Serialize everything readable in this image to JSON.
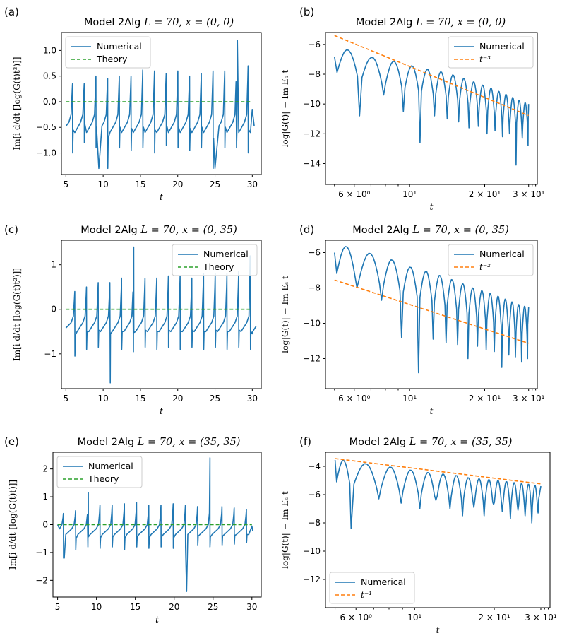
{
  "colors": {
    "numerical": "#1f77b4",
    "theory": "#2ca02c",
    "powerlaw": "#ff7f0e"
  },
  "chart_data": [
    {
      "label": "(a)",
      "type": "line",
      "title_text": "Model 2Alg",
      "title_math": "L = 70, x = (0, 0)",
      "xlabel": "t",
      "ylabel": "Im[i d/dt [log(G(t)t³)]]",
      "xscale": "linear",
      "xlim": [
        4.4,
        31.2
      ],
      "ylim": [
        -1.42,
        1.35
      ],
      "xticks": [
        5,
        10,
        15,
        20,
        25,
        30
      ],
      "xtick_labels": [
        "5",
        "10",
        "15",
        "20",
        "25",
        "30"
      ],
      "yticks": [
        -1.0,
        -0.5,
        0.0,
        0.5,
        1.0
      ],
      "ytick_labels": [
        "−1.0",
        "−0.5",
        "0.0",
        "0.5",
        "1.0"
      ],
      "legend": {
        "loc": "upper-left",
        "entries": [
          "Numerical",
          "Theory"
        ]
      },
      "series": [
        {
          "name": "Numerical",
          "role": "oscillating",
          "period": 1.57,
          "phase": 5.9,
          "baseline": -0.35,
          "start": [
            5.0,
            -0.48
          ],
          "end": [
            30.0,
            -0.15
          ],
          "peaks": [
            0.35,
            0.35,
            0.5,
            0.45,
            0.5,
            0.5,
            0.62,
            0.6,
            0.55,
            0.6,
            0.5,
            0.55,
            0.6,
            0.6,
            0.65,
            0.7,
            0.45
          ],
          "troughs": [
            -1.0,
            -0.8,
            -0.9,
            -1.3,
            -0.9,
            -0.95,
            -0.9,
            -1.0,
            -0.85,
            -0.9,
            -0.95,
            -0.9,
            -1.3,
            -0.9,
            -0.9,
            -1.0,
            -0.9
          ],
          "spikes": [
            [
              9.42,
              -1.3
            ],
            [
              25.0,
              -1.3
            ],
            [
              28.0,
              1.2
            ]
          ]
        },
        {
          "name": "Theory",
          "role": "flat",
          "value": 0.0
        }
      ]
    },
    {
      "label": "(b)",
      "type": "line",
      "title_text": "Model 2Alg",
      "title_math": "L = 70, x = (0, 0)",
      "xlabel": "t",
      "ylabel": "log|G(t)| − Im Eₛ t",
      "xscale": "log",
      "xlim": [
        4.6,
        32.5
      ],
      "ylim": [
        -15.4,
        -5.2
      ],
      "xticks": [
        6,
        10,
        20,
        30
      ],
      "xtick_labels": [
        "6 × 10⁰",
        "10¹",
        "2 × 10¹",
        "3 × 10¹"
      ],
      "yticks": [
        -14,
        -12,
        -10,
        -8,
        -6
      ],
      "ytick_labels": [
        "−14",
        "−12",
        "−10",
        "−8",
        "−6"
      ],
      "legend": {
        "loc": "upper-right",
        "entries": [
          "Numerical",
          "t⁻³"
        ]
      },
      "series": [
        {
          "name": "Numerical",
          "role": "oscillating",
          "period": 1.57,
          "phase": 6.3,
          "start": [
            5.0,
            -6.85
          ],
          "end": [
            30.0,
            -10.6
          ],
          "crests": [
            [
              5.5,
              -6.3
            ],
            [
              7.0,
              -6.85
            ],
            [
              8.5,
              -7.1
            ],
            [
              10.0,
              -7.4
            ],
            [
              12.0,
              -7.7
            ],
            [
              14.0,
              -7.9
            ],
            [
              16.0,
              -8.2
            ],
            [
              18.0,
              -8.5
            ],
            [
              21.0,
              -8.9
            ],
            [
              24.0,
              -9.3
            ],
            [
              27.0,
              -9.7
            ],
            [
              30.0,
              -10.0
            ]
          ],
          "dip_depths": [
            -10.8,
            -9.4,
            -10.5,
            -12.6,
            -10.8,
            -11.0,
            -11.2,
            -11.6,
            -11.5,
            -12.0,
            -11.8,
            -12.2,
            -12.0,
            -14.1,
            -12.3,
            -12.8,
            -12.5,
            -14.9,
            -13.1,
            -12.8,
            -14.0,
            -13.2,
            -13.9,
            -13.0
          ]
        },
        {
          "name": "t⁻³",
          "role": "powerlaw",
          "exponent": -3,
          "anchor": [
            5.0,
            -5.4
          ]
        }
      ]
    },
    {
      "label": "(c)",
      "type": "line",
      "title_text": "Model 2Alg",
      "title_math": "L = 70, x = (0, 35)",
      "xlabel": "t",
      "ylabel": "Im[i d/dt [log(G(t)t²)]]",
      "xscale": "linear",
      "xlim": [
        4.4,
        31.2
      ],
      "ylim": [
        -1.78,
        1.55
      ],
      "xticks": [
        5,
        10,
        15,
        20,
        25,
        30
      ],
      "xtick_labels": [
        "5",
        "10",
        "15",
        "20",
        "25",
        "30"
      ],
      "yticks": [
        -1,
        0,
        1
      ],
      "ytick_labels": [
        "−1",
        "0",
        "1"
      ],
      "legend": {
        "loc": "upper-right",
        "entries": [
          "Numerical",
          "Theory"
        ]
      },
      "series": [
        {
          "name": "Numerical",
          "role": "oscillating",
          "period": 1.57,
          "phase": 6.2,
          "baseline": -0.25,
          "start": [
            5.0,
            -0.42
          ],
          "end": [
            30.0,
            -0.55
          ],
          "peaks": [
            0.4,
            0.5,
            0.6,
            0.6,
            0.7,
            0.65,
            0.7,
            0.7,
            0.75,
            0.75,
            0.7,
            0.8,
            0.8,
            0.8,
            0.85,
            0.8,
            0.9
          ],
          "troughs": [
            -1.05,
            -0.9,
            -0.85,
            -1.0,
            -0.9,
            -0.95,
            -0.85,
            -0.9,
            -0.85,
            -0.9,
            -0.85,
            -0.9,
            -0.85,
            -0.9,
            -0.85,
            -0.9,
            -0.8
          ],
          "spikes": [
            [
              10.95,
              -1.65
            ],
            [
              14.1,
              1.4
            ],
            [
              29.7,
              1.2
            ]
          ]
        },
        {
          "name": "Theory",
          "role": "flat",
          "value": 0.0
        }
      ]
    },
    {
      "label": "(d)",
      "type": "line",
      "title_text": "Model 2Alg",
      "title_math": "L = 70, x = (0, 35)",
      "xlabel": "t",
      "ylabel": "log|G(t)| − Im Eₛ t",
      "xscale": "log",
      "xlim": [
        4.6,
        32.5
      ],
      "ylim": [
        -13.7,
        -5.3
      ],
      "xticks": [
        6,
        10,
        20,
        30
      ],
      "xtick_labels": [
        "6 × 10⁰",
        "10¹",
        "2 × 10¹",
        "3 × 10¹"
      ],
      "yticks": [
        -12,
        -10,
        -8,
        -6
      ],
      "ytick_labels": [
        "−12",
        "−10",
        "−8",
        "−6"
      ],
      "legend": {
        "loc": "upper-right",
        "entries": [
          "Numerical",
          "t⁻²"
        ]
      },
      "series": [
        {
          "name": "Numerical",
          "role": "oscillating",
          "period": 1.57,
          "phase": 6.15,
          "start": [
            5.0,
            -6.0
          ],
          "end": [
            30.0,
            -10.5
          ],
          "crests": [
            [
              5.4,
              -5.6
            ],
            [
              7.0,
              -6.05
            ],
            [
              8.5,
              -6.4
            ],
            [
              10.0,
              -6.8
            ],
            [
              12.0,
              -7.1
            ],
            [
              14.0,
              -7.4
            ],
            [
              16.0,
              -7.7
            ],
            [
              18.0,
              -8.0
            ],
            [
              21.0,
              -8.3
            ],
            [
              24.0,
              -8.6
            ],
            [
              27.0,
              -8.9
            ],
            [
              30.0,
              -9.1
            ]
          ],
          "dip_depths": [
            -8.0,
            -8.7,
            -10.8,
            -12.8,
            -10.9,
            -11.1,
            -11.2,
            -12.0,
            -11.3,
            -11.5,
            -11.6,
            -12.5,
            -11.8,
            -11.9,
            -12.2,
            -12.0,
            -12.3,
            -13.2,
            -12.5,
            -12.8,
            -12.6,
            -12.9,
            -12.7,
            -13.0
          ]
        },
        {
          "name": "t⁻²",
          "role": "powerlaw",
          "exponent": -2,
          "anchor": [
            5.0,
            -7.55
          ]
        }
      ]
    },
    {
      "label": "(e)",
      "type": "line",
      "title_text": "Model 2Alg",
      "title_math": "L = 70, x = (35, 35)",
      "xlabel": "t",
      "ylabel": "Im[i d/dt [log(G(t)t)]]",
      "xscale": "linear",
      "xlim": [
        4.4,
        31.2
      ],
      "ylim": [
        -2.6,
        2.6
      ],
      "xticks": [
        5,
        10,
        15,
        20,
        25,
        30
      ],
      "xtick_labels": [
        "5",
        "10",
        "15",
        "20",
        "25",
        "30"
      ],
      "yticks": [
        -2,
        -1,
        0,
        1,
        2
      ],
      "ytick_labels": [
        "−2",
        "−1",
        "0",
        "1",
        "2"
      ],
      "legend": {
        "loc": "upper-left",
        "entries": [
          "Numerical",
          "Theory"
        ]
      },
      "series": [
        {
          "name": "Numerical",
          "role": "oscillating",
          "period": 1.57,
          "phase": 5.75,
          "baseline": -0.1,
          "start": [
            5.0,
            0.0
          ],
          "end": [
            30.0,
            -0.05
          ],
          "peaks": [
            0.4,
            0.5,
            0.6,
            0.7,
            0.7,
            0.75,
            0.8,
            0.7,
            0.7,
            0.75,
            0.7,
            0.65,
            0.7,
            0.65,
            0.6,
            0.55,
            0.4
          ],
          "troughs": [
            -1.2,
            -0.9,
            -0.8,
            -0.85,
            -0.8,
            -0.9,
            -0.8,
            -0.85,
            -0.8,
            -0.85,
            -0.8,
            -0.75,
            -0.8,
            -0.75,
            -0.7,
            -0.65,
            -0.5
          ],
          "spikes": [
            [
              5.85,
              -1.2
            ],
            [
              8.95,
              1.15
            ],
            [
              21.6,
              -2.4
            ],
            [
              24.6,
              2.4
            ]
          ]
        },
        {
          "name": "Theory",
          "role": "flat",
          "value": 0.0
        }
      ]
    },
    {
      "label": "(f)",
      "type": "line",
      "title_text": "Model 2Alg",
      "title_math": "L = 70, x = (35, 35)",
      "xlabel": "t",
      "ylabel": "log|G(t)| − Im Eₛ t",
      "xscale": "log",
      "xlim": [
        4.6,
        32.5
      ],
      "ylim": [
        -14.0,
        -3.0
      ],
      "xticks": [
        6,
        10,
        20,
        30
      ],
      "xtick_labels": [
        "6 × 10⁰",
        "10¹",
        "2 × 10¹",
        "3 × 10¹"
      ],
      "yticks": [
        -12,
        -10,
        -8,
        -6,
        -4
      ],
      "ytick_labels": [
        "−12",
        "−10",
        "−8",
        "−6",
        "−4"
      ],
      "legend": {
        "loc": "lower-left",
        "entries": [
          "Numerical",
          "t⁻¹"
        ]
      },
      "series": [
        {
          "name": "Numerical",
          "role": "oscillating",
          "period": 1.57,
          "phase": 5.75,
          "start": [
            5.0,
            -3.55
          ],
          "end": [
            30.0,
            -5.4
          ],
          "crests": [
            [
              5.0,
              -3.5
            ],
            [
              7.0,
              -3.9
            ],
            [
              8.5,
              -4.1
            ],
            [
              10.0,
              -4.3
            ],
            [
              12.0,
              -4.5
            ],
            [
              14.0,
              -4.6
            ],
            [
              16.0,
              -4.8
            ],
            [
              18.0,
              -4.9
            ],
            [
              21.0,
              -5.0
            ],
            [
              24.0,
              -5.15
            ],
            [
              27.0,
              -5.25
            ],
            [
              30.0,
              -5.4
            ]
          ],
          "dip_depths": [
            -8.4,
            -6.3,
            -6.6,
            -7.0,
            -6.4,
            -7.0,
            -7.5,
            -6.9,
            -7.5,
            -6.7,
            -7.2,
            -7.7,
            -7.1,
            -7.5,
            -8.0,
            -7.3,
            -13.3,
            -7.4,
            -7.8,
            -8.6,
            -7.6,
            -7.9,
            -7.4,
            -7.6
          ]
        },
        {
          "name": "t⁻¹",
          "role": "powerlaw",
          "exponent": -1,
          "anchor": [
            5.0,
            -3.45
          ]
        }
      ]
    }
  ]
}
